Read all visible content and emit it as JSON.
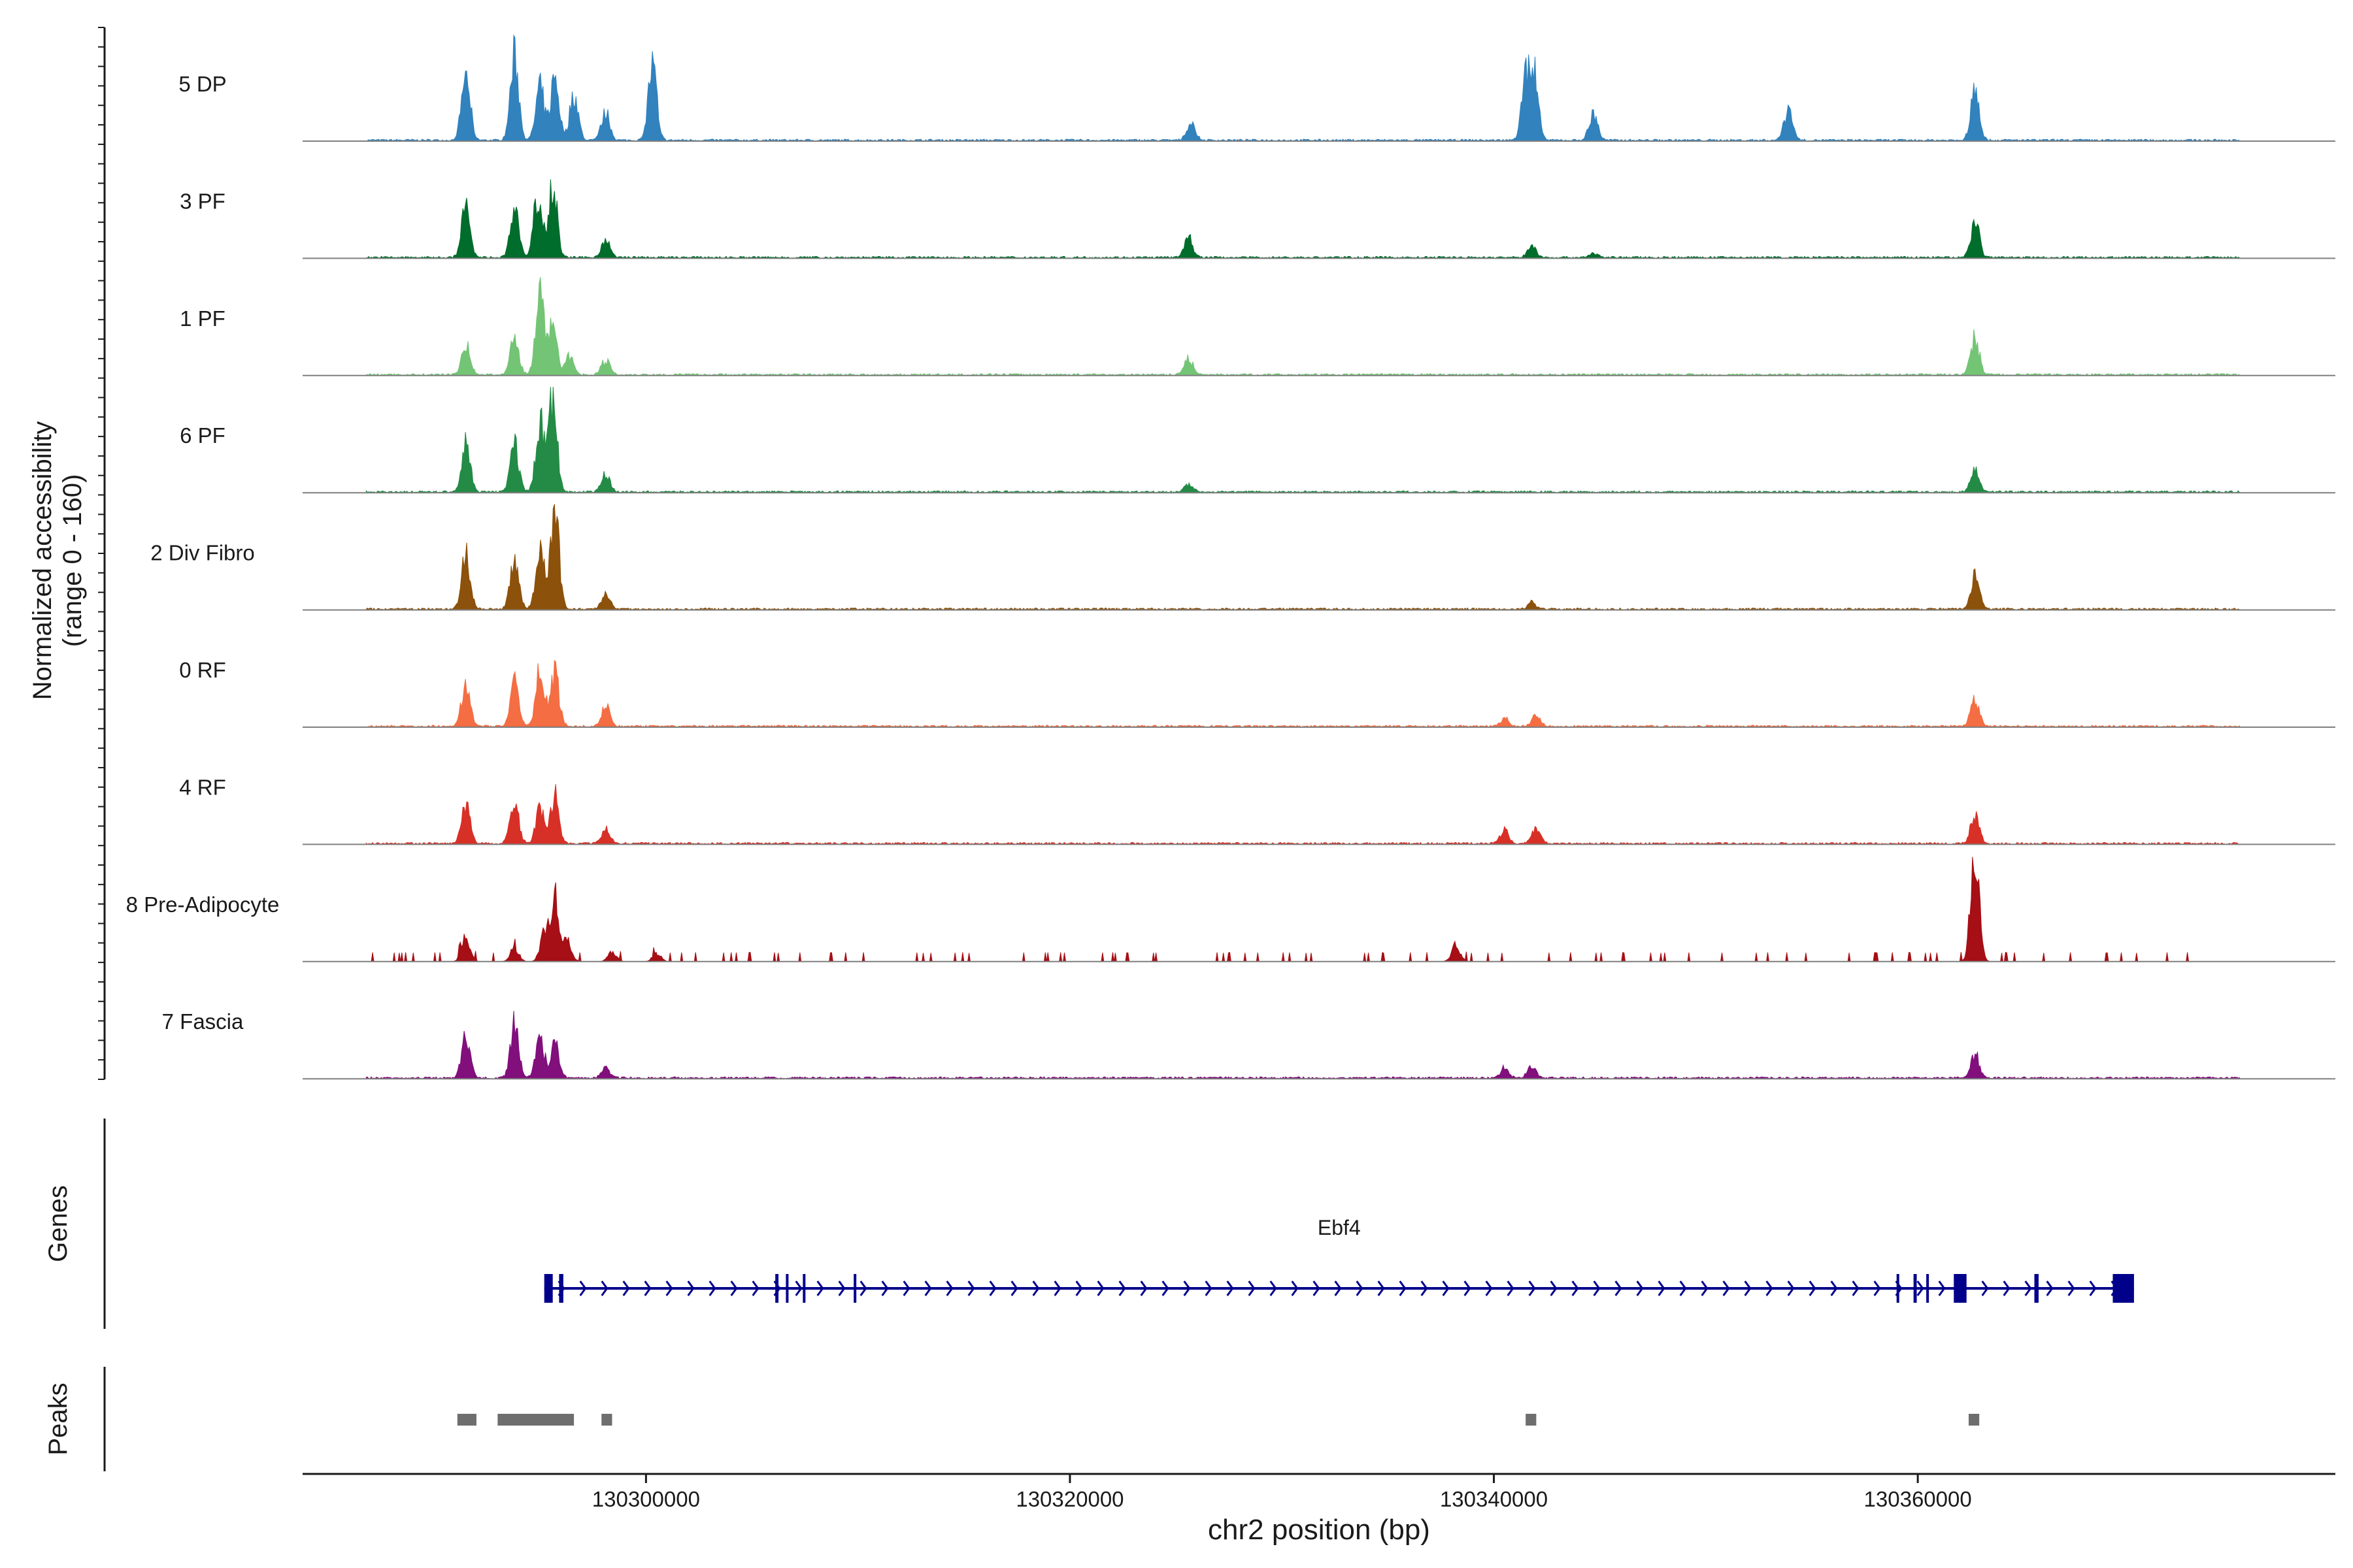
{
  "chart_data": {
    "type": "area",
    "title": "",
    "ylabel": "Normalized accessibility",
    "ylabel_range": "(range 0 - 160)",
    "ylim": [
      0,
      160
    ],
    "xlabel": "chr2 position (bp)",
    "xlim": [
      130283800,
      130379700
    ],
    "x_ticks": [
      130300000,
      130320000,
      130340000,
      130360000
    ],
    "x_tick_labels": [
      "130300000",
      "130320000",
      "130340000",
      "130360000"
    ],
    "peak_positions": [
      130291500,
      130293800,
      130295600,
      130298100,
      130300300,
      130325600,
      130341800,
      130344700,
      130353900,
      130362700
    ],
    "series": [
      {
        "name": "5 DP",
        "color": "#3182bd",
        "peaks": [
          [
            130291500,
            100
          ],
          [
            130293800,
            125
          ],
          [
            130295000,
            78
          ],
          [
            130295700,
            95
          ],
          [
            130296600,
            70
          ],
          [
            130298100,
            42
          ],
          [
            130300300,
            110
          ],
          [
            130325700,
            26
          ],
          [
            130341500,
            90
          ],
          [
            130341900,
            95
          ],
          [
            130344700,
            40
          ],
          [
            130353900,
            50
          ],
          [
            130362700,
            75
          ]
        ]
      },
      {
        "name": "3 PF",
        "color": "#006d2c",
        "peaks": [
          [
            130291500,
            75
          ],
          [
            130293800,
            75
          ],
          [
            130294900,
            95
          ],
          [
            130295600,
            115
          ],
          [
            130298100,
            28
          ],
          [
            130325600,
            28
          ],
          [
            130341800,
            18
          ],
          [
            130344700,
            6
          ],
          [
            130362700,
            55
          ]
        ]
      },
      {
        "name": "1 PF",
        "color": "#74c476",
        "peaks": [
          [
            130291500,
            45
          ],
          [
            130293800,
            55
          ],
          [
            130295000,
            115
          ],
          [
            130295600,
            85
          ],
          [
            130296400,
            28
          ],
          [
            130298100,
            22
          ],
          [
            130325600,
            25
          ],
          [
            130362700,
            55
          ]
        ]
      },
      {
        "name": "6 PF",
        "color": "#238b45",
        "peaks": [
          [
            130291500,
            75
          ],
          [
            130293800,
            70
          ],
          [
            130295000,
            105
          ],
          [
            130295600,
            140
          ],
          [
            130298100,
            25
          ],
          [
            130325600,
            12
          ],
          [
            130362700,
            35
          ]
        ]
      },
      {
        "name": "2 Div Fibro",
        "color": "#8c510a",
        "peaks": [
          [
            130291500,
            80
          ],
          [
            130293800,
            75
          ],
          [
            130295000,
            95
          ],
          [
            130295700,
            150
          ],
          [
            130298100,
            25
          ],
          [
            130341800,
            10
          ],
          [
            130362700,
            55
          ]
        ]
      },
      {
        "name": "0 RF",
        "color": "#f46d43",
        "peaks": [
          [
            130291500,
            70
          ],
          [
            130293800,
            65
          ],
          [
            130295000,
            85
          ],
          [
            130295700,
            80
          ],
          [
            130298100,
            30
          ],
          [
            130340500,
            12
          ],
          [
            130342000,
            18
          ],
          [
            130362700,
            42
          ]
        ]
      },
      {
        "name": "4 RF",
        "color": "#d73027",
        "peaks": [
          [
            130291500,
            60
          ],
          [
            130293800,
            65
          ],
          [
            130295000,
            50
          ],
          [
            130295700,
            70
          ],
          [
            130298100,
            22
          ],
          [
            130340500,
            20
          ],
          [
            130342000,
            22
          ],
          [
            130362700,
            45
          ]
        ]
      },
      {
        "name": "8 Pre-Adipocyte",
        "color": "#a50f15",
        "peaks": [
          [
            130291500,
            35
          ],
          [
            130293800,
            20
          ],
          [
            130295200,
            40
          ],
          [
            130295700,
            95
          ],
          [
            130296300,
            30
          ],
          [
            130298400,
            15
          ],
          [
            130300500,
            12
          ],
          [
            130338200,
            25
          ],
          [
            130362700,
            160
          ]
        ]
      },
      {
        "name": "7 Fascia",
        "color": "#810f7c",
        "peaks": [
          [
            130291500,
            65
          ],
          [
            130293800,
            80
          ],
          [
            130295000,
            60
          ],
          [
            130295700,
            50
          ],
          [
            130298100,
            15
          ],
          [
            130340500,
            15
          ],
          [
            130341800,
            18
          ],
          [
            130362700,
            35
          ]
        ]
      }
    ],
    "genes": {
      "label": "Genes",
      "name": "Ebf4",
      "strand": "+",
      "start": 130295200,
      "end": 130370200,
      "exons": [
        [
          130295200,
          130295600
        ],
        [
          130295900,
          130296100
        ],
        [
          130306100,
          130306250
        ],
        [
          130306600,
          130306700
        ],
        [
          130307400,
          130307450
        ],
        [
          130309800,
          130309850
        ],
        [
          130359000,
          130359100
        ],
        [
          130359800,
          130359950
        ],
        [
          130360400,
          130360500
        ],
        [
          130361700,
          130362300
        ],
        [
          130365500,
          130365700
        ],
        [
          130369200,
          130370200
        ]
      ]
    },
    "peaks_track": {
      "label": "Peaks",
      "regions": [
        [
          130291100,
          130292000
        ],
        [
          130293000,
          130296600
        ],
        [
          130297900,
          130298400
        ],
        [
          130341500,
          130342000
        ],
        [
          130362400,
          130362900
        ]
      ]
    }
  }
}
